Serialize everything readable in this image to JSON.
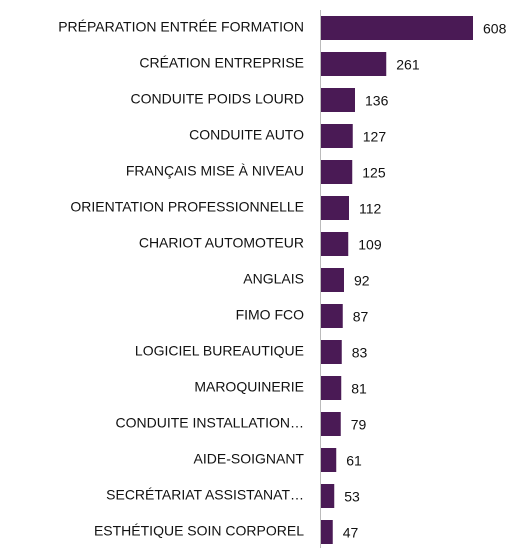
{
  "chart_data": {
    "type": "bar",
    "orientation": "horizontal",
    "categories": [
      "PRÉPARATION ENTRÉE FORMATION",
      "CRÉATION ENTREPRISE",
      "CONDUITE POIDS LOURD",
      "CONDUITE AUTO",
      "FRANÇAIS MISE À NIVEAU",
      "ORIENTATION PROFESSIONNELLE",
      "CHARIOT AUTOMOTEUR",
      "ANGLAIS",
      "FIMO FCO",
      "LOGICIEL BUREAUTIQUE",
      "MAROQUINERIE",
      "CONDUITE INSTALLATION…",
      "AIDE-SOIGNANT",
      "SECRÉTARIAT ASSISTANAT…",
      "ESTHÉTIQUE SOIN CORPOREL"
    ],
    "values": [
      608,
      261,
      136,
      127,
      125,
      112,
      109,
      92,
      87,
      83,
      81,
      79,
      61,
      53,
      47
    ],
    "color": "#4a1a55"
  }
}
